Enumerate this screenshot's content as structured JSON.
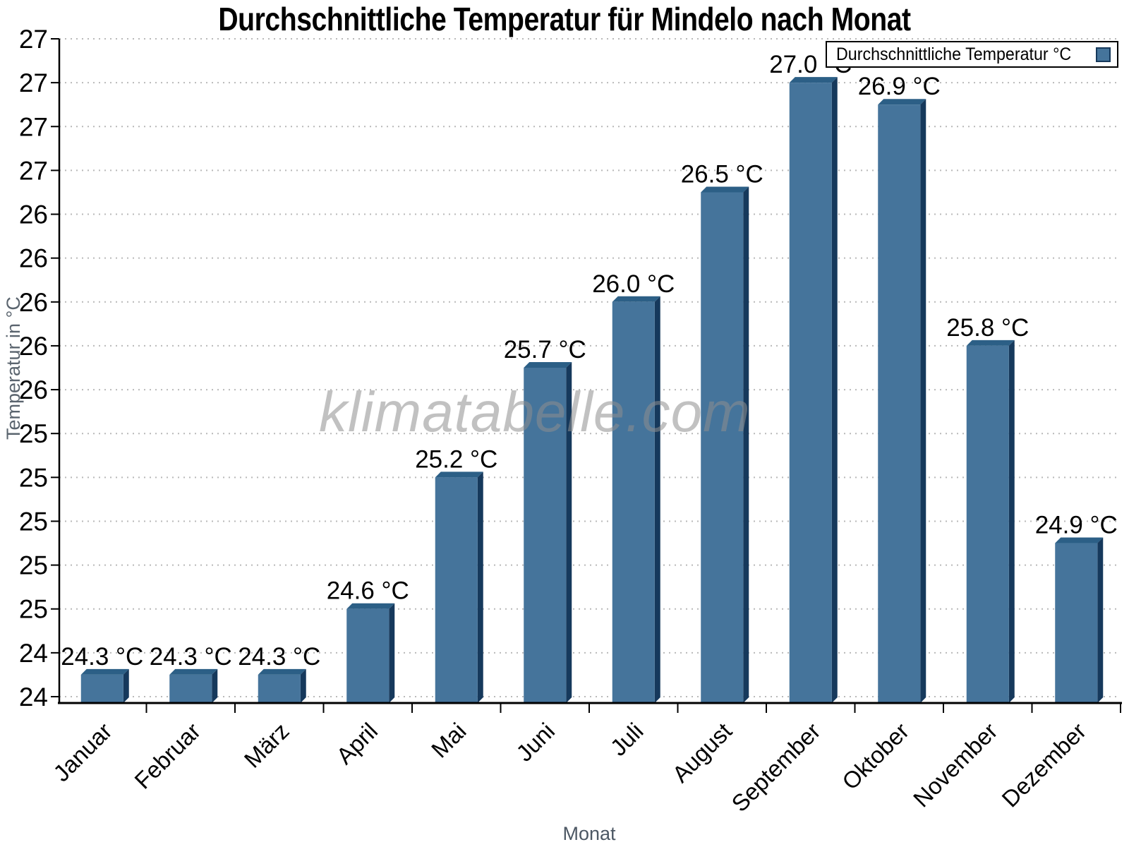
{
  "chart_data": {
    "type": "bar",
    "title": "Durchschnittliche Temperatur für Mindelo nach Monat",
    "xlabel": "Monat",
    "ylabel": "Temperatur in °C",
    "legend_label": "Durchschnittliche Temperatur °C",
    "legend_position": "top-right",
    "watermark": "klimatabelle.com",
    "categories": [
      "Januar",
      "Februar",
      "März",
      "April",
      "Mai",
      "Juni",
      "Juli",
      "August",
      "September",
      "Oktober",
      "November",
      "Dezember"
    ],
    "values": [
      24.3,
      24.3,
      24.3,
      24.6,
      25.2,
      25.7,
      26.0,
      26.5,
      27.0,
      26.9,
      25.8,
      24.9
    ],
    "value_labels": [
      "24.3 °C",
      "24.3 °C",
      "24.3 °C",
      "24.6 °C",
      "25.2 °C",
      "25.7 °C",
      "26.0 °C",
      "26.5 °C",
      "27.0 °C",
      "26.9 °C",
      "25.8 °C",
      "24.9 °C"
    ],
    "unit": "°C",
    "y_axis": {
      "tick_min": 24.2,
      "tick_max": 27.2,
      "tick_step": 0.2,
      "baseline_value": 24.17,
      "tick_label_style": "rounded-integer",
      "displayed_tick_labels_top_to_bottom": [
        "27",
        "27",
        "27",
        "27",
        "26",
        "26",
        "26",
        "26",
        "26",
        "25",
        "25",
        "25",
        "25",
        "25",
        "24",
        "24"
      ]
    },
    "grid": "dotted-horizontal",
    "bar_style": "pseudo-3d",
    "colors": {
      "bar_front": "#45749B",
      "bar_top": "#2C5F86",
      "bar_side": "#16395C",
      "grid": "#b9b9b9",
      "axis": "#000000",
      "axis_title_text": "#4d5864",
      "watermark_text": "#8f8f8f"
    }
  }
}
